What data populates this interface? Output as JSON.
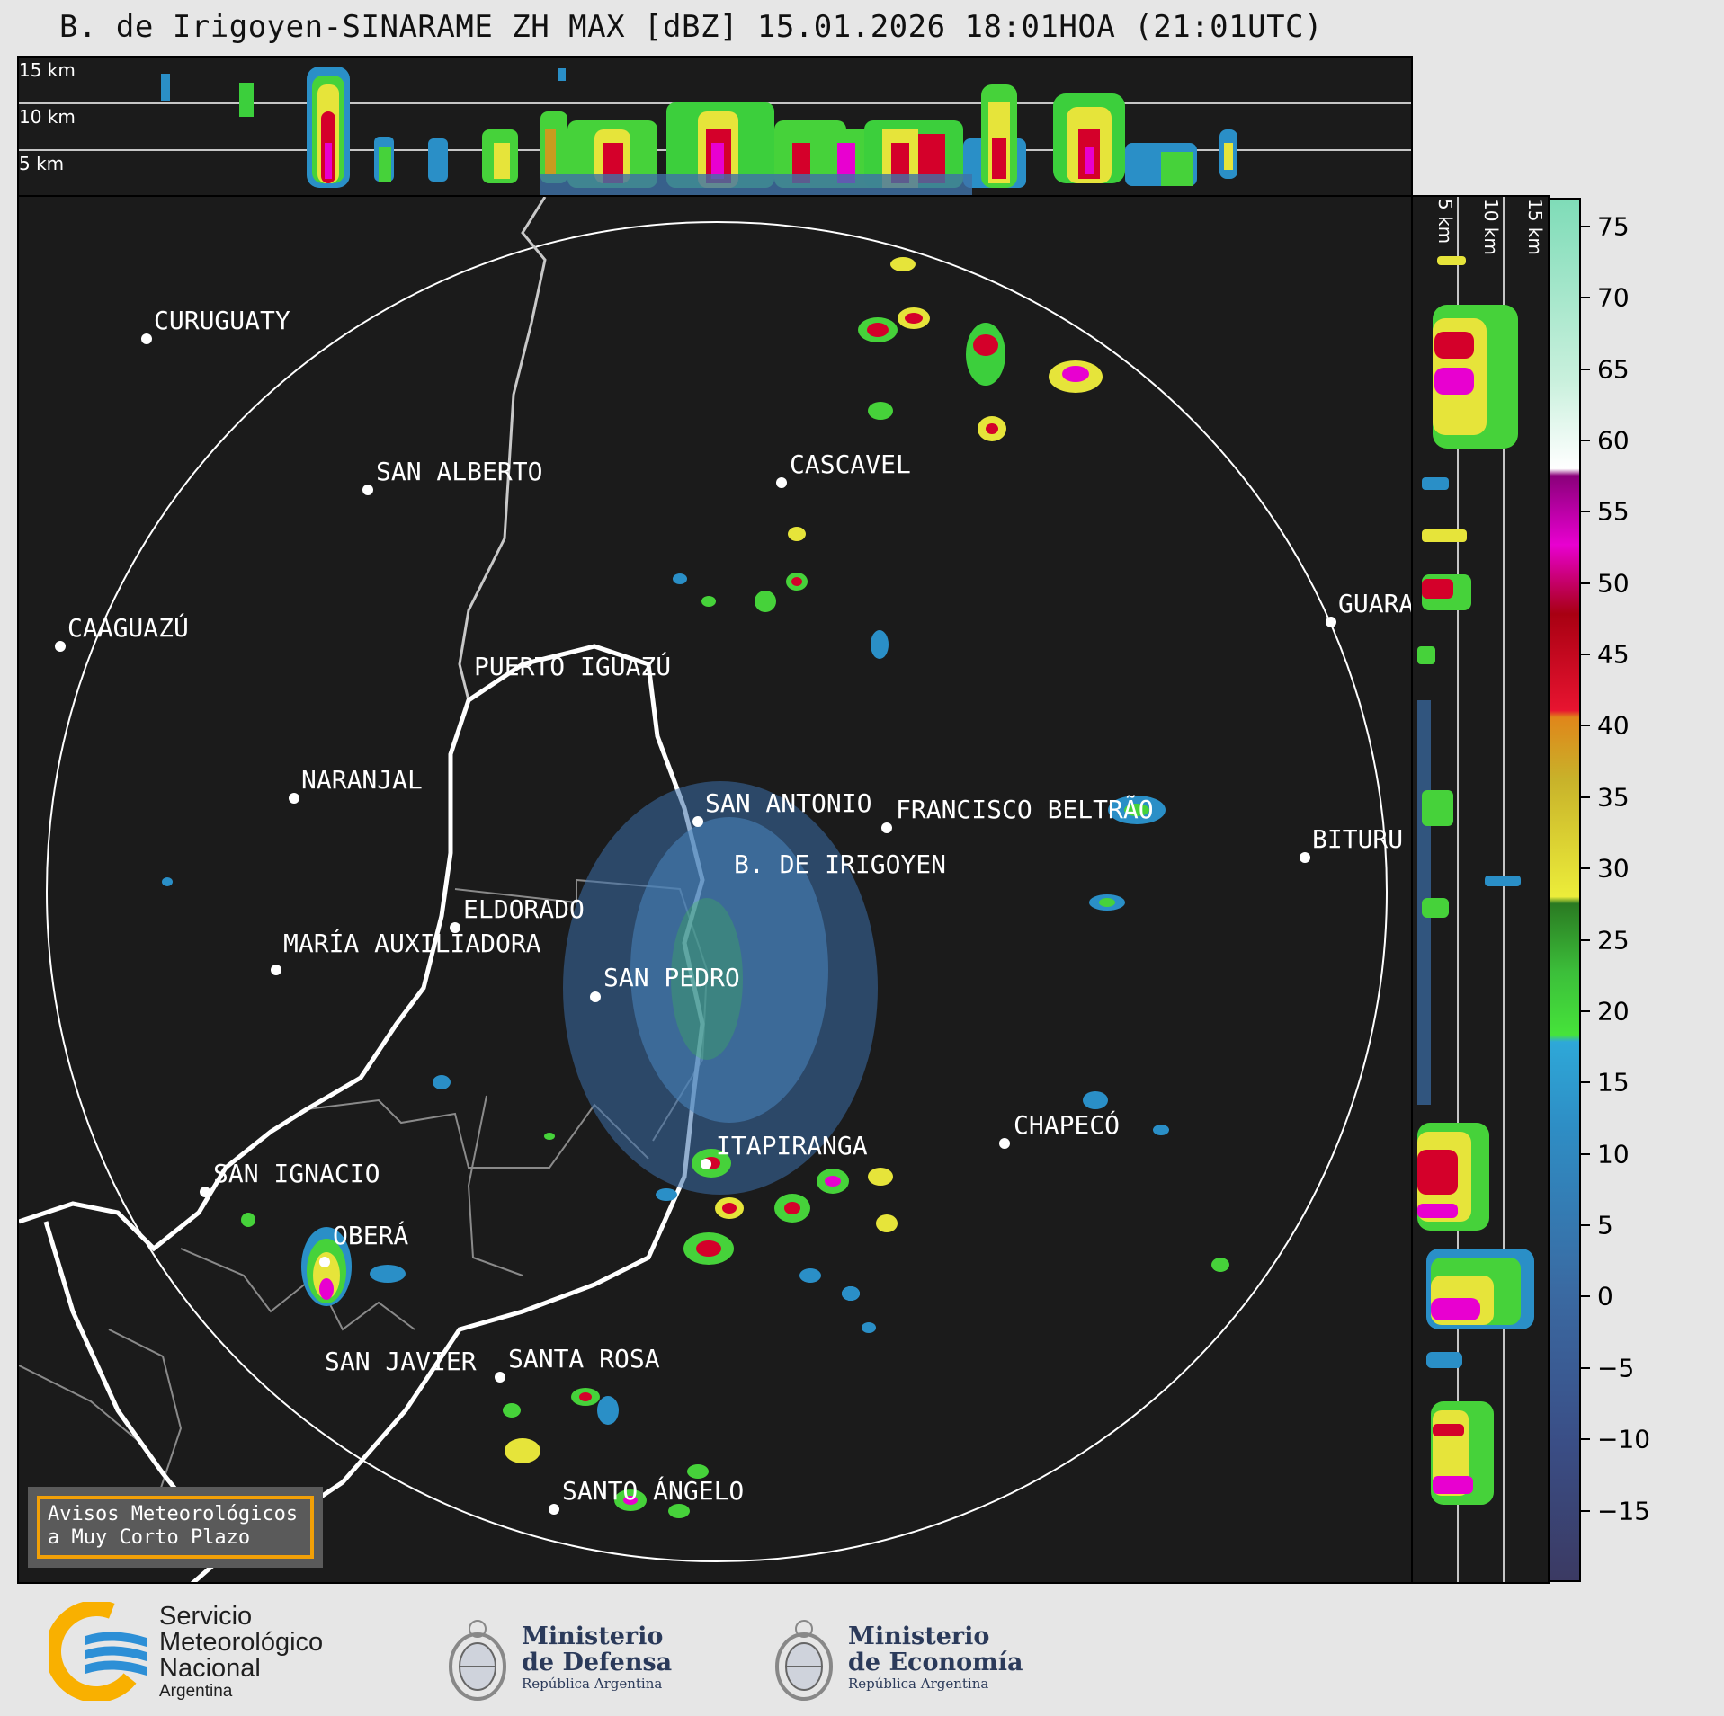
{
  "title": "B. de Irigoyen-SINARAME ZH MAX [dBZ] 15.01.2026 18:01HOA (21:01UTC)",
  "top_profile": {
    "levels": [
      "15 km",
      "10 km",
      "5 km"
    ]
  },
  "side_profile": {
    "levels": [
      "5 km",
      "10 km",
      "15 km"
    ]
  },
  "cities": [
    {
      "name": "CURUGUATY"
    },
    {
      "name": "SAN ALBERTO"
    },
    {
      "name": "CASCAVEL"
    },
    {
      "name": "CAAGUAZÚ"
    },
    {
      "name": "GUARA"
    },
    {
      "name": "PUERTO IGUAZÚ"
    },
    {
      "name": "NARANJAL"
    },
    {
      "name": "SAN ANTONIO"
    },
    {
      "name": "FRANCISCO BELTRÃO"
    },
    {
      "name": "B. DE IRIGOYEN"
    },
    {
      "name": "BITURU"
    },
    {
      "name": "ELDORADO"
    },
    {
      "name": "MARÍA AUXILIADORA"
    },
    {
      "name": "SAN PEDRO"
    },
    {
      "name": "CHAPECÓ"
    },
    {
      "name": "ITAPIRANGA"
    },
    {
      "name": "SAN IGNACIO"
    },
    {
      "name": "OBERÁ"
    },
    {
      "name": "SAN JAVIER"
    },
    {
      "name": "SANTA ROSA"
    },
    {
      "name": "SANTO ÁNGELO"
    }
  ],
  "colorbar": {
    "unit": "dBZ",
    "min": -20,
    "max": 77,
    "ticks": [
      "75",
      "70",
      "65",
      "60",
      "55",
      "50",
      "45",
      "40",
      "35",
      "30",
      "25",
      "20",
      "15",
      "10",
      "5",
      "0",
      "−5",
      "−10",
      "−15"
    ],
    "tick_values": [
      75,
      70,
      65,
      60,
      55,
      50,
      45,
      40,
      35,
      30,
      25,
      20,
      15,
      10,
      5,
      0,
      -5,
      -10,
      -15
    ]
  },
  "notice": {
    "line1": "Avisos Meteorológicos",
    "line2": "a Muy Corto Plazo"
  },
  "footer": {
    "smn": {
      "line1": "Servicio",
      "line2": "Meteorológico",
      "line3": "Nacional",
      "sub": "Argentina"
    },
    "defensa": {
      "line1": "Ministerio",
      "line2": "de Defensa",
      "sub": "República Argentina"
    },
    "economia": {
      "line1": "Ministerio",
      "line2": "de Economía",
      "sub": "República Argentina"
    }
  },
  "colors": {
    "background": "#1b1b1b",
    "page": "#e6e6e6",
    "notice_border": "#f2a007",
    "smn_blue": "#2d8fd6",
    "smn_yellow": "#f9b000",
    "ministry_navy": "#2b3a5a"
  }
}
